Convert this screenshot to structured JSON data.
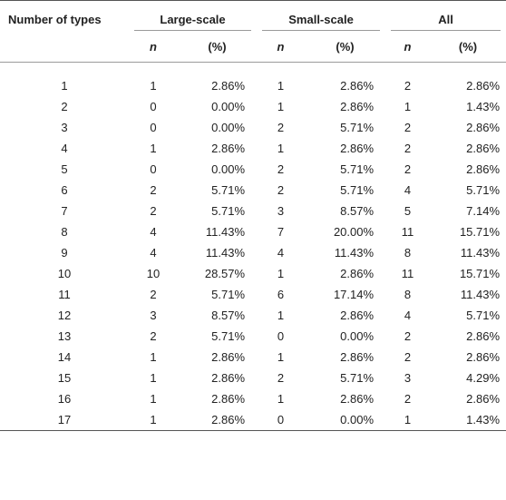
{
  "table": {
    "header": {
      "types_label": "Number of types",
      "groups": [
        {
          "label": "Large-scale",
          "n_label": "n",
          "pct_label": "(%)"
        },
        {
          "label": "Small-scale",
          "n_label": "n",
          "pct_label": "(%)"
        },
        {
          "label": "All",
          "n_label": "n",
          "pct_label": "(%)"
        }
      ]
    },
    "rows": [
      {
        "types": "1",
        "large_n": "1",
        "large_pct": "2.86%",
        "small_n": "1",
        "small_pct": "2.86%",
        "all_n": "2",
        "all_pct": "2.86%"
      },
      {
        "types": "2",
        "large_n": "0",
        "large_pct": "0.00%",
        "small_n": "1",
        "small_pct": "2.86%",
        "all_n": "1",
        "all_pct": "1.43%"
      },
      {
        "types": "3",
        "large_n": "0",
        "large_pct": "0.00%",
        "small_n": "2",
        "small_pct": "5.71%",
        "all_n": "2",
        "all_pct": "2.86%"
      },
      {
        "types": "4",
        "large_n": "1",
        "large_pct": "2.86%",
        "small_n": "1",
        "small_pct": "2.86%",
        "all_n": "2",
        "all_pct": "2.86%"
      },
      {
        "types": "5",
        "large_n": "0",
        "large_pct": "0.00%",
        "small_n": "2",
        "small_pct": "5.71%",
        "all_n": "2",
        "all_pct": "2.86%"
      },
      {
        "types": "6",
        "large_n": "2",
        "large_pct": "5.71%",
        "small_n": "2",
        "small_pct": "5.71%",
        "all_n": "4",
        "all_pct": "5.71%"
      },
      {
        "types": "7",
        "large_n": "2",
        "large_pct": "5.71%",
        "small_n": "3",
        "small_pct": "8.57%",
        "all_n": "5",
        "all_pct": "7.14%"
      },
      {
        "types": "8",
        "large_n": "4",
        "large_pct": "11.43%",
        "small_n": "7",
        "small_pct": "20.00%",
        "all_n": "11",
        "all_pct": "15.71%"
      },
      {
        "types": "9",
        "large_n": "4",
        "large_pct": "11.43%",
        "small_n": "4",
        "small_pct": "11.43%",
        "all_n": "8",
        "all_pct": "11.43%"
      },
      {
        "types": "10",
        "large_n": "10",
        "large_pct": "28.57%",
        "small_n": "1",
        "small_pct": "2.86%",
        "all_n": "11",
        "all_pct": "15.71%"
      },
      {
        "types": "11",
        "large_n": "2",
        "large_pct": "5.71%",
        "small_n": "6",
        "small_pct": "17.14%",
        "all_n": "8",
        "all_pct": "11.43%"
      },
      {
        "types": "12",
        "large_n": "3",
        "large_pct": "8.57%",
        "small_n": "1",
        "small_pct": "2.86%",
        "all_n": "4",
        "all_pct": "5.71%"
      },
      {
        "types": "13",
        "large_n": "2",
        "large_pct": "5.71%",
        "small_n": "0",
        "small_pct": "0.00%",
        "all_n": "2",
        "all_pct": "2.86%"
      },
      {
        "types": "14",
        "large_n": "1",
        "large_pct": "2.86%",
        "small_n": "1",
        "small_pct": "2.86%",
        "all_n": "2",
        "all_pct": "2.86%"
      },
      {
        "types": "15",
        "large_n": "1",
        "large_pct": "2.86%",
        "small_n": "2",
        "small_pct": "5.71%",
        "all_n": "3",
        "all_pct": "4.29%"
      },
      {
        "types": "16",
        "large_n": "1",
        "large_pct": "2.86%",
        "small_n": "1",
        "small_pct": "2.86%",
        "all_n": "2",
        "all_pct": "2.86%"
      },
      {
        "types": "17",
        "large_n": "1",
        "large_pct": "2.86%",
        "small_n": "0",
        "small_pct": "0.00%",
        "all_n": "1",
        "all_pct": "1.43%"
      }
    ]
  }
}
